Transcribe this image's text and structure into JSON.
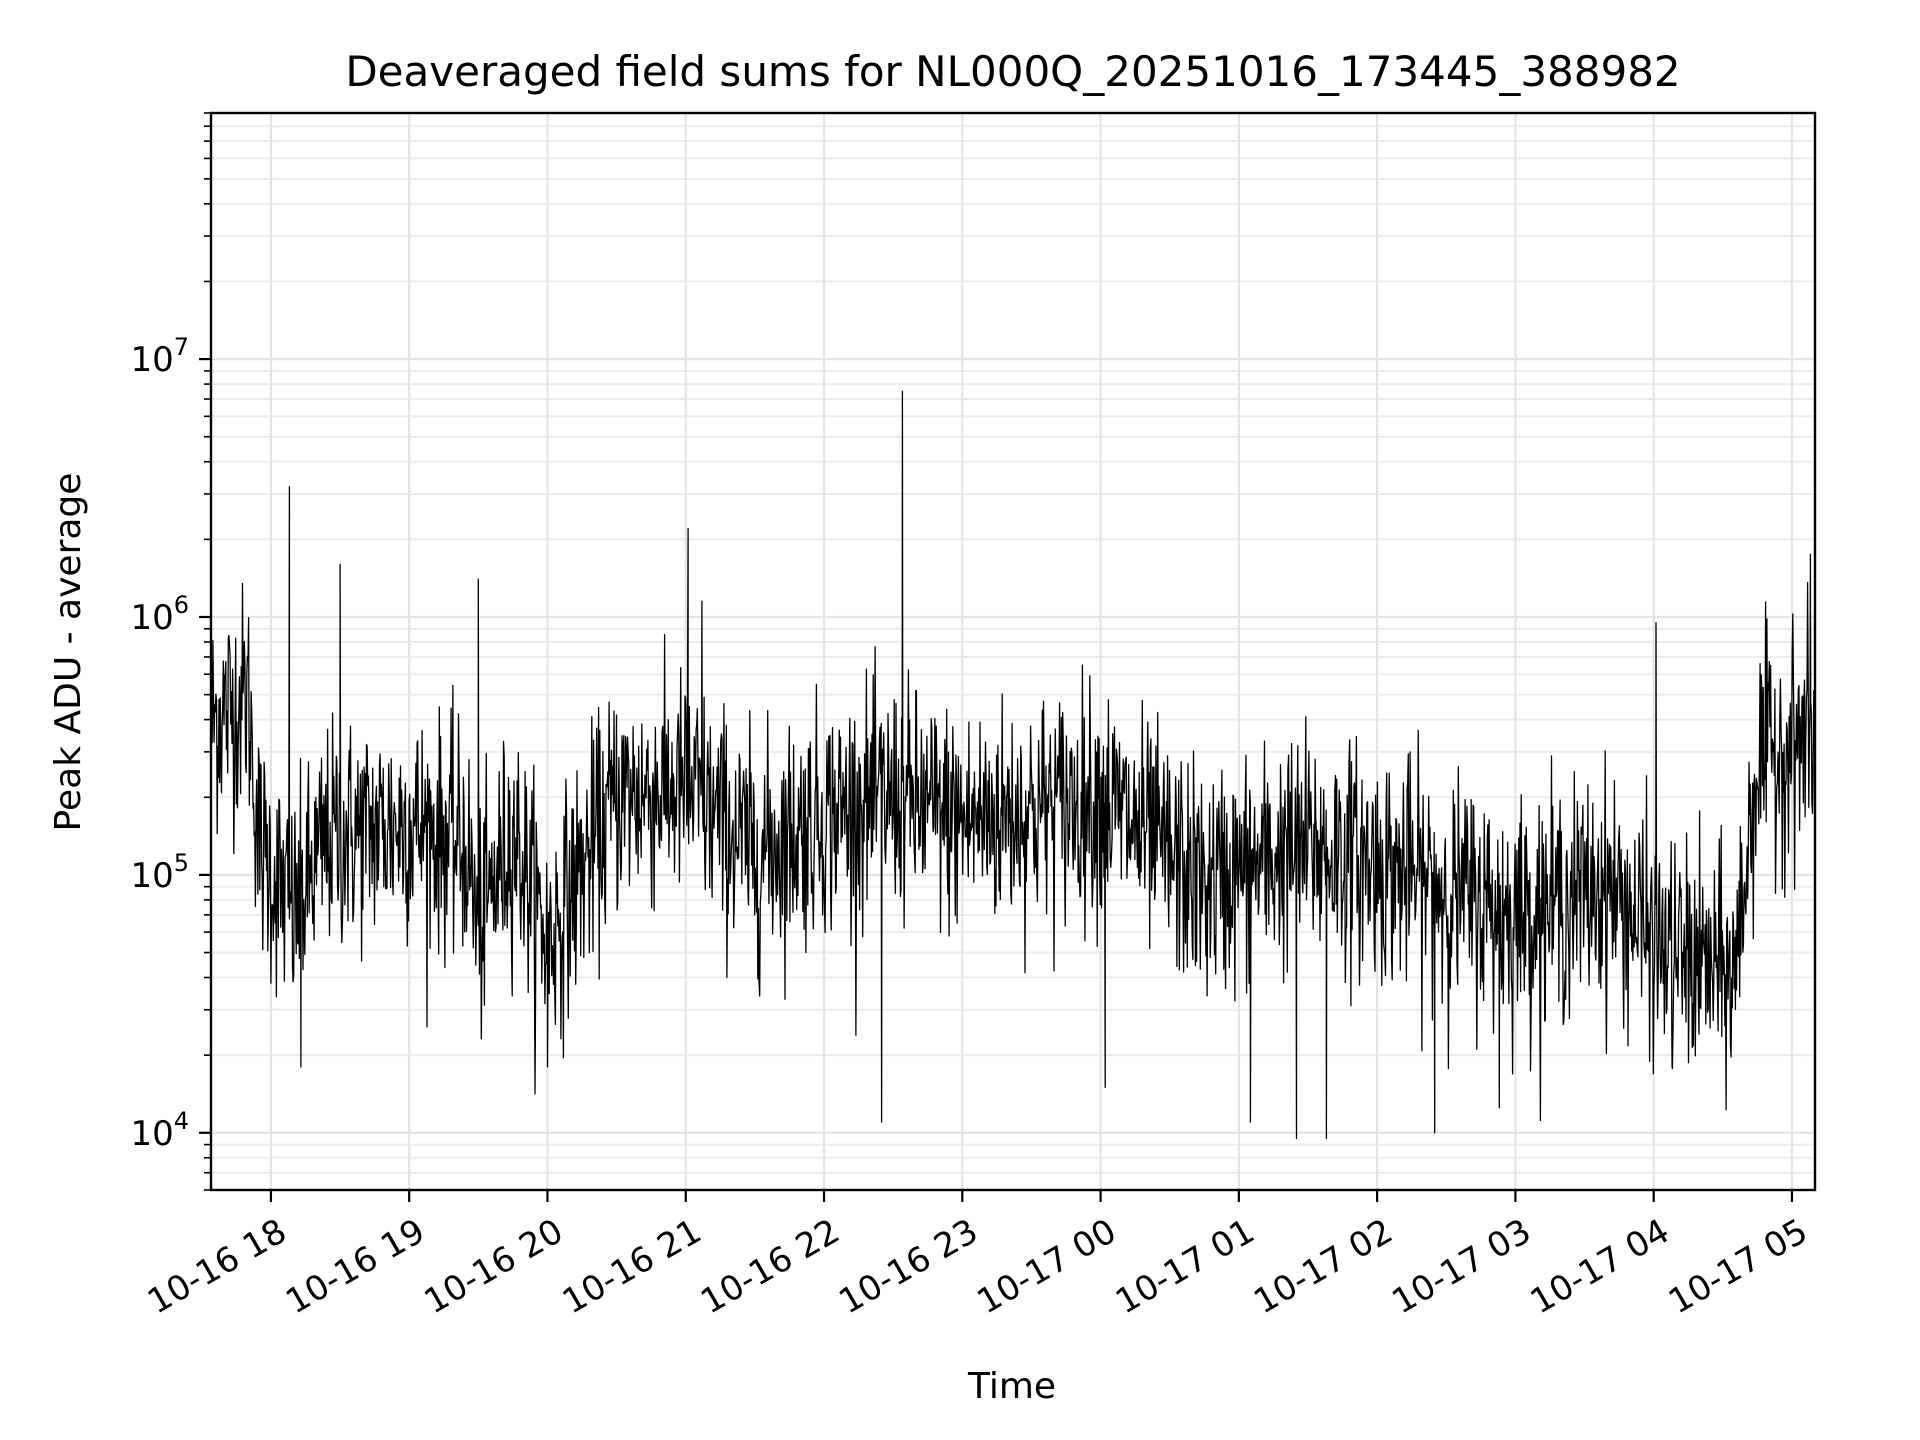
{
  "chart_data": {
    "type": "line",
    "title": "Deaveraged field sums for NL000Q_20251016_173445_388982",
    "xlabel": "Time",
    "ylabel": "Peak ADU - average",
    "y_scale": "log",
    "grid": "on (major and minor)",
    "xlim": [
      "2025-10-16 17:34",
      "2025-10-17 05:10"
    ],
    "ylim": [
      6000,
      90000000
    ],
    "x_ticks": [
      "10-16 18",
      "10-16 19",
      "10-16 20",
      "10-16 21",
      "10-16 22",
      "10-16 23",
      "10-17 00",
      "10-17 01",
      "10-17 02",
      "10-17 03",
      "10-17 04",
      "10-17 05"
    ],
    "y_ticks": [
      {
        "value": 10000,
        "base": "10",
        "exp": "4"
      },
      {
        "value": 100000,
        "base": "10",
        "exp": "5"
      },
      {
        "value": 1000000,
        "base": "10",
        "exp": "6"
      },
      {
        "value": 10000000,
        "base": "10",
        "exp": "7"
      }
    ],
    "series": [
      {
        "color": "#000000",
        "baseline": [
          [
            "2025-10-16 17:35",
            400000
          ],
          [
            "2025-10-16 17:50",
            500000
          ],
          [
            "2025-10-16 17:55",
            130000
          ],
          [
            "2025-10-16 18:10",
            70000
          ],
          [
            "2025-10-16 18:25",
            140000
          ],
          [
            "2025-10-16 19:00",
            160000
          ],
          [
            "2025-10-16 19:25",
            130000
          ],
          [
            "2025-10-16 19:30",
            60000
          ],
          [
            "2025-10-16 19:45",
            150000
          ],
          [
            "2025-10-16 20:00",
            55000
          ],
          [
            "2025-10-16 20:30",
            200000
          ],
          [
            "2025-10-16 21:00",
            220000
          ],
          [
            "2025-10-16 21:30",
            120000
          ],
          [
            "2025-10-16 22:00",
            170000
          ],
          [
            "2025-10-16 22:30",
            200000
          ],
          [
            "2025-10-16 23:00",
            160000
          ],
          [
            "2025-10-17 00:00",
            200000
          ],
          [
            "2025-10-17 00:45",
            90000
          ],
          [
            "2025-10-17 01:30",
            130000
          ],
          [
            "2025-10-17 02:00",
            110000
          ],
          [
            "2025-10-17 03:00",
            70000
          ],
          [
            "2025-10-17 03:40",
            90000
          ],
          [
            "2025-10-17 04:05",
            50000
          ],
          [
            "2025-10-17 04:35",
            40000
          ],
          [
            "2025-10-17 04:45",
            280000
          ],
          [
            "2025-10-17 05:10",
            350000
          ]
        ],
        "spikes": [
          [
            "2025-10-16 18:08",
            3200000
          ],
          [
            "2025-10-16 18:30",
            1600000
          ],
          [
            "2025-10-16 19:30",
            1400000
          ],
          [
            "2025-10-16 21:01",
            2200000
          ],
          [
            "2025-10-16 21:07",
            1150000
          ],
          [
            "2025-10-16 22:34",
            7500000
          ],
          [
            "2025-10-17 04:01",
            950000
          ],
          [
            "2025-10-17 05:08",
            1750000
          ]
        ],
        "dips": [
          [
            "2025-10-16 18:13",
            18000
          ],
          [
            "2025-10-16 20:00",
            18000
          ],
          [
            "2025-10-16 22:25",
            11000
          ],
          [
            "2025-10-17 00:02",
            15000
          ],
          [
            "2025-10-17 01:05",
            11000
          ],
          [
            "2025-10-17 01:25",
            9500
          ],
          [
            "2025-10-17 01:38",
            9500
          ],
          [
            "2025-10-17 02:25",
            10000
          ],
          [
            "2025-10-17 02:53",
            12500
          ],
          [
            "2025-10-17 04:08",
            18000
          ]
        ]
      }
    ]
  }
}
